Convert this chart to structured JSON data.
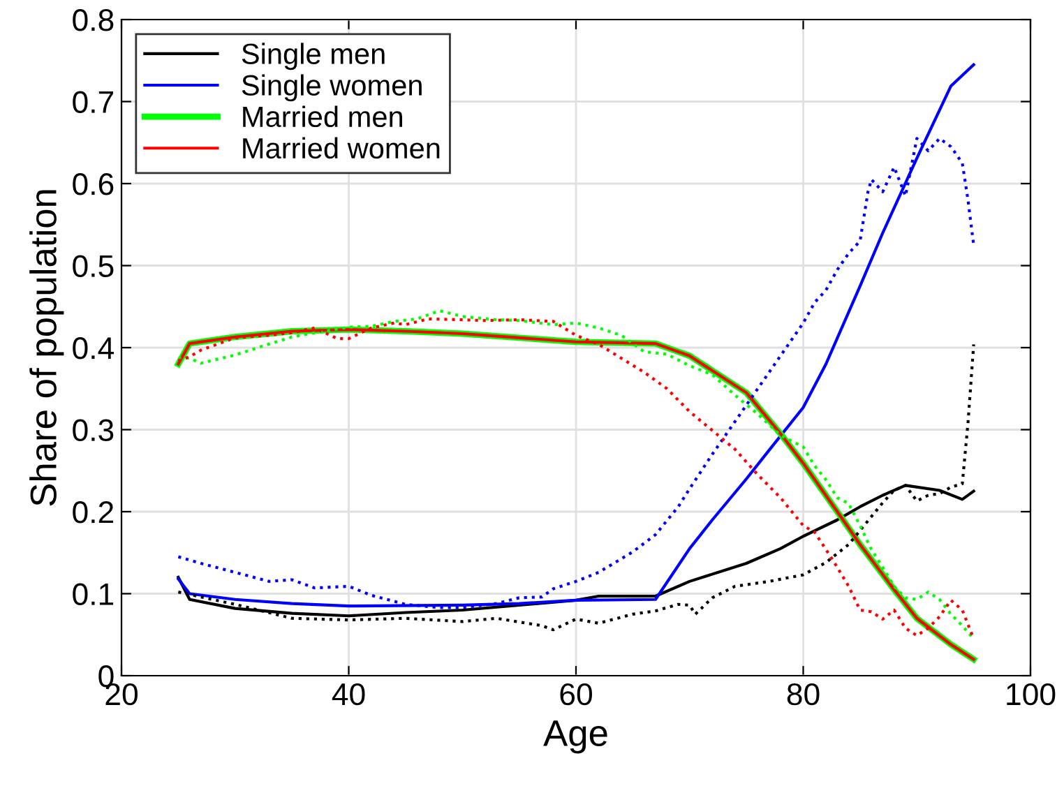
{
  "chart_data": {
    "type": "line",
    "xlabel": "Age",
    "ylabel": "Share of population",
    "xlim": [
      20,
      100
    ],
    "xticks": [
      20,
      40,
      60,
      80,
      100
    ],
    "ylim": [
      0,
      0.8
    ],
    "yticks": [
      0,
      0.1,
      0.2,
      0.3,
      0.4,
      0.5,
      0.6,
      0.7,
      0.8
    ],
    "grid": true,
    "legend": "top left",
    "line_style": "solid",
    "series": [
      {
        "name": "Single men",
        "color": "#000000",
        "x": [
          25,
          26,
          30,
          35,
          40,
          45,
          50,
          55,
          60,
          62,
          67,
          70,
          75,
          78,
          80,
          83,
          85,
          87,
          89,
          92,
          94,
          95
        ],
        "values": [
          0.12,
          0.093,
          0.082,
          0.076,
          0.073,
          0.077,
          0.08,
          0.086,
          0.092,
          0.097,
          0.097,
          0.115,
          0.137,
          0.155,
          0.17,
          0.19,
          0.206,
          0.22,
          0.232,
          0.226,
          0.215,
          0.225
        ]
      },
      {
        "name": "Single women",
        "color": "#0000ff",
        "x": [
          25,
          26,
          30,
          35,
          40,
          50,
          55,
          60,
          67,
          70,
          72,
          75,
          77,
          80,
          82,
          85,
          87,
          90,
          93,
          95
        ],
        "values": [
          0.118,
          0.1,
          0.093,
          0.088,
          0.085,
          0.086,
          0.088,
          0.092,
          0.093,
          0.155,
          0.19,
          0.24,
          0.275,
          0.327,
          0.38,
          0.475,
          0.54,
          0.631,
          0.719,
          0.745
        ]
      },
      {
        "name": "Married men",
        "color": "#00ff00",
        "x": [
          25,
          26,
          30,
          35,
          40,
          45,
          50,
          55,
          60,
          67,
          70,
          72,
          75,
          78,
          80,
          83,
          85,
          88,
          90,
          93,
          95
        ],
        "values": [
          0.38,
          0.405,
          0.413,
          0.42,
          0.422,
          0.42,
          0.417,
          0.412,
          0.407,
          0.405,
          0.39,
          0.372,
          0.345,
          0.295,
          0.259,
          0.2,
          0.16,
          0.105,
          0.07,
          0.038,
          0.02
        ]
      },
      {
        "name": "Married women",
        "color": "#ff0000",
        "x": [
          25,
          26,
          30,
          35,
          40,
          45,
          50,
          55,
          60,
          67,
          70,
          72,
          75,
          78,
          80,
          83,
          85,
          88,
          90,
          93,
          95
        ],
        "values": [
          0.38,
          0.405,
          0.413,
          0.42,
          0.422,
          0.42,
          0.417,
          0.412,
          0.407,
          0.405,
          0.39,
          0.372,
          0.345,
          0.295,
          0.259,
          0.2,
          0.16,
          0.105,
          0.07,
          0.038,
          0.02
        ]
      },
      {
        "color": "#000000",
        "line_style": "dotted",
        "x": [
          25,
          30,
          35,
          40,
          45,
          50,
          53,
          57,
          58,
          60,
          62,
          65,
          67,
          69,
          70,
          70.5,
          72,
          74,
          77,
          80,
          82,
          84,
          85,
          87,
          88,
          89,
          90,
          91,
          92,
          93,
          94,
          94.5,
          95
        ],
        "values": [
          0.102,
          0.087,
          0.07,
          0.068,
          0.07,
          0.066,
          0.07,
          0.061,
          0.056,
          0.069,
          0.064,
          0.075,
          0.079,
          0.087,
          0.086,
          0.075,
          0.095,
          0.109,
          0.115,
          0.123,
          0.138,
          0.16,
          0.177,
          0.211,
          0.226,
          0.232,
          0.213,
          0.22,
          0.222,
          0.23,
          0.234,
          0.308,
          0.404
        ]
      },
      {
        "color": "#0000ff",
        "line_style": "dotted",
        "x": [
          25,
          27,
          30,
          33,
          35,
          37,
          40,
          42,
          45,
          48,
          50,
          53,
          55,
          57,
          58,
          60,
          62,
          65,
          67,
          69,
          70,
          72,
          74,
          75,
          77,
          79,
          80,
          81,
          82,
          83,
          84,
          85,
          85.7,
          86,
          87,
          88,
          89,
          90,
          91,
          92,
          93,
          94,
          94.5,
          95
        ],
        "values": [
          0.145,
          0.137,
          0.126,
          0.115,
          0.117,
          0.107,
          0.109,
          0.098,
          0.087,
          0.083,
          0.083,
          0.088,
          0.095,
          0.096,
          0.106,
          0.115,
          0.126,
          0.151,
          0.172,
          0.206,
          0.228,
          0.27,
          0.31,
          0.33,
          0.37,
          0.41,
          0.43,
          0.455,
          0.47,
          0.495,
          0.515,
          0.53,
          0.59,
          0.605,
          0.59,
          0.62,
          0.585,
          0.655,
          0.64,
          0.655,
          0.645,
          0.625,
          0.58,
          0.525
        ]
      },
      {
        "color": "#00ff00",
        "line_style": "dotted",
        "x": [
          25,
          26,
          27,
          30,
          32,
          35,
          37,
          40,
          42,
          44,
          46,
          48,
          50,
          53,
          55,
          58,
          60,
          62,
          64,
          66,
          68,
          70,
          72,
          74,
          76,
          78,
          80,
          81,
          82,
          83,
          84,
          85,
          86,
          87,
          88,
          89,
          90,
          91,
          92,
          93,
          94,
          95
        ],
        "values": [
          0.387,
          0.387,
          0.381,
          0.391,
          0.4,
          0.413,
          0.418,
          0.425,
          0.426,
          0.432,
          0.435,
          0.445,
          0.438,
          0.434,
          0.433,
          0.428,
          0.43,
          0.424,
          0.415,
          0.395,
          0.392,
          0.378,
          0.367,
          0.342,
          0.319,
          0.293,
          0.279,
          0.256,
          0.239,
          0.217,
          0.21,
          0.183,
          0.154,
          0.132,
          0.109,
          0.095,
          0.093,
          0.102,
          0.093,
          0.075,
          0.061,
          0.045
        ]
      },
      {
        "color": "#ff0000",
        "line_style": "dotted",
        "x": [
          25,
          26,
          27,
          30,
          33,
          35,
          37,
          39,
          40,
          42,
          44,
          45,
          47,
          50,
          52,
          55,
          58,
          60,
          62,
          64,
          66,
          68,
          70,
          72,
          74,
          76,
          78,
          80,
          81,
          82,
          83,
          84,
          85,
          86,
          87,
          88,
          89,
          90,
          91,
          92,
          93,
          94,
          95
        ],
        "values": [
          0.384,
          0.389,
          0.397,
          0.412,
          0.415,
          0.418,
          0.424,
          0.411,
          0.411,
          0.424,
          0.43,
          0.428,
          0.435,
          0.434,
          0.433,
          0.434,
          0.432,
          0.415,
          0.404,
          0.387,
          0.37,
          0.35,
          0.322,
          0.299,
          0.276,
          0.245,
          0.217,
          0.183,
          0.175,
          0.154,
          0.132,
          0.109,
          0.08,
          0.078,
          0.069,
          0.08,
          0.058,
          0.049,
          0.058,
          0.072,
          0.092,
          0.08,
          0.045
        ]
      }
    ]
  }
}
